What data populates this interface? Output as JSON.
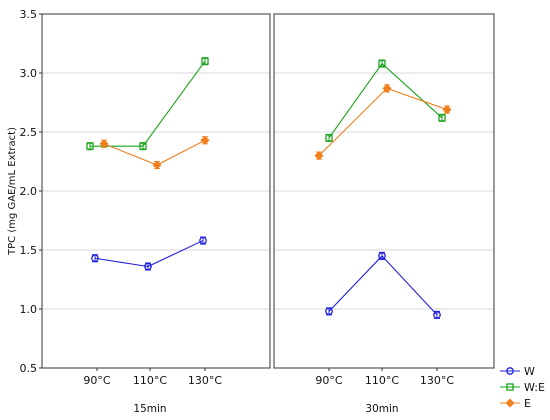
{
  "chart_data": {
    "type": "line",
    "ylabel": "TPC (mg GAE/mL Extract)",
    "ylim": [
      0.5,
      3.5
    ],
    "yticks": [
      "0.5",
      "1.0",
      "1.5",
      "2.0",
      "2.5",
      "3.0",
      "3.5"
    ],
    "grid": "horizontal",
    "legend_position": "bottom-right",
    "categories": [
      "90°C",
      "110°C",
      "130°C"
    ],
    "panels": [
      {
        "label": "15min",
        "series": [
          {
            "name": "W",
            "color": "#1f1fe0",
            "marker": "circle",
            "values": [
              1.43,
              1.36,
              1.58
            ],
            "errors": [
              0.03,
              0.03,
              0.03
            ]
          },
          {
            "name": "W:E",
            "color": "#1aa51a",
            "marker": "square",
            "values": [
              2.38,
              2.38,
              3.1
            ],
            "errors": [
              0.03,
              0.03,
              0.03
            ]
          },
          {
            "name": "E",
            "color": "#f07f1f",
            "marker": "diamond",
            "values": [
              2.4,
              2.22,
              2.43
            ],
            "errors": [
              0.03,
              0.03,
              0.03
            ]
          }
        ]
      },
      {
        "label": "30min",
        "series": [
          {
            "name": "W",
            "color": "#1f1fe0",
            "marker": "circle",
            "values": [
              0.98,
              1.45,
              0.95
            ],
            "errors": [
              0.03,
              0.03,
              0.03
            ]
          },
          {
            "name": "W:E",
            "color": "#1aa51a",
            "marker": "square",
            "values": [
              2.45,
              3.08,
              2.62
            ],
            "errors": [
              0.03,
              0.03,
              0.03
            ]
          },
          {
            "name": "E",
            "color": "#f07f1f",
            "marker": "diamond",
            "values": [
              2.3,
              2.87,
              2.69
            ],
            "errors": [
              0.03,
              0.03,
              0.03
            ]
          }
        ]
      }
    ],
    "legend": [
      "W",
      "W:E",
      "E"
    ]
  }
}
